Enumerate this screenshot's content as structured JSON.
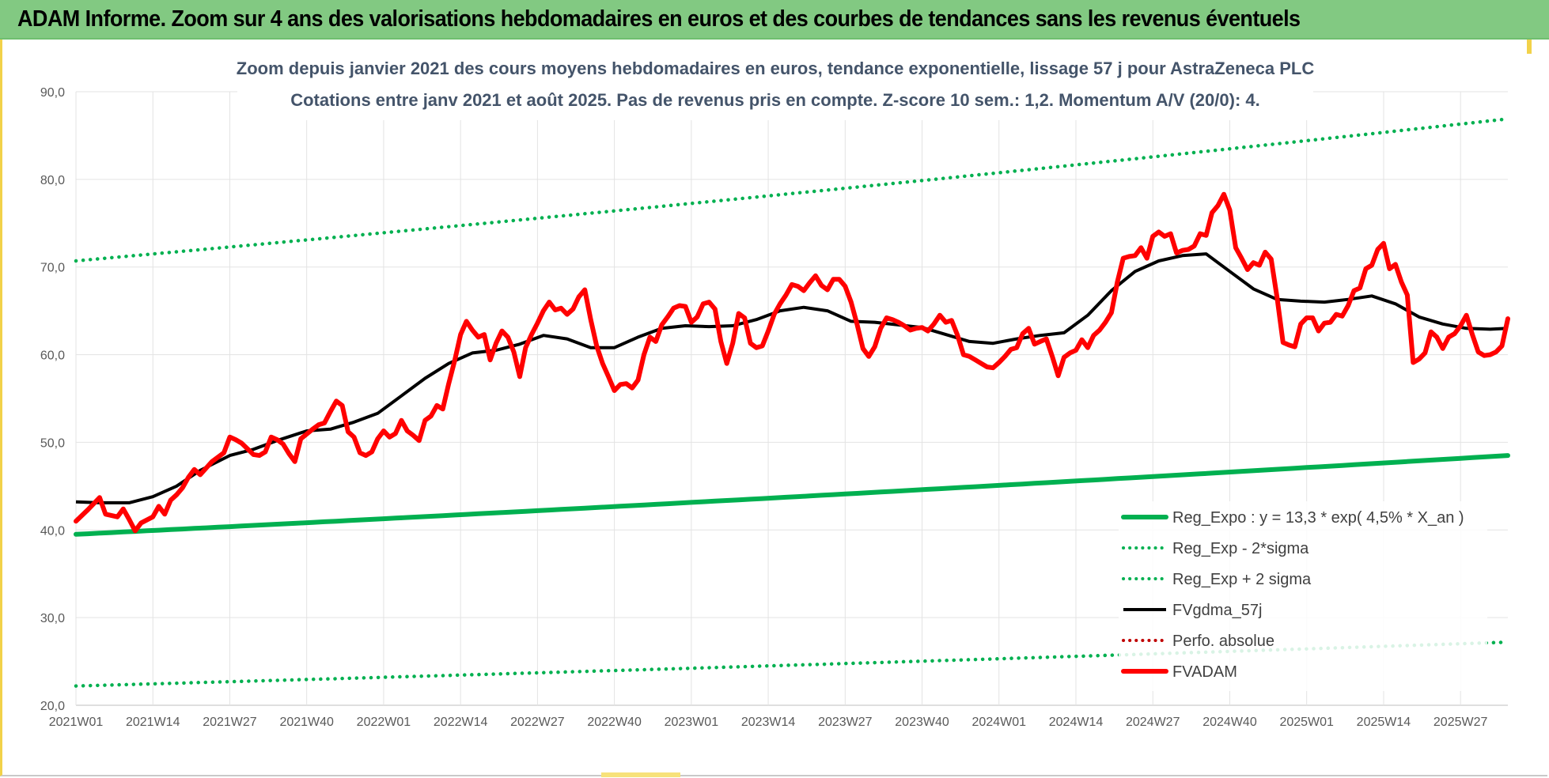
{
  "header": {
    "title": "ADAM Informe. Zoom sur 4 ans des valorisations hebdomadaires en euros et des courbes de tendances sans les revenus éventuels"
  },
  "colors": {
    "header_bg": "#82c982",
    "reg_expo": "#00b050",
    "fvgdma": "#000000",
    "perfo": "#c00000",
    "fvadam": "#ff0000",
    "subtitle": "#44546a"
  },
  "chart_data": {
    "type": "line",
    "title_line1": "Zoom depuis janvier 2021 des cours moyens hebdomadaires en euros, tendance exponentielle, lissage 57 j pour AstraZeneca PLC",
    "title_line2": "Cotations entre janv 2021 et août 2025.  Pas de revenus pris en compte. Z-score 10 sem.: 1,2. Momentum A/V (20/0): 4.",
    "ylim": [
      20,
      90
    ],
    "y_ticks": [
      "20,0",
      "30,0",
      "40,0",
      "50,0",
      "60,0",
      "70,0",
      "80,0",
      "90,0"
    ],
    "x_ticks": [
      "2021W01",
      "2021W14",
      "2021W27",
      "2021W40",
      "2022W01",
      "2022W14",
      "2022W27",
      "2022W40",
      "2023W01",
      "2023W14",
      "2023W27",
      "2023W40",
      "2024W01",
      "2024W14",
      "2024W27",
      "2024W40",
      "2025W01",
      "2025W14",
      "2025W27"
    ],
    "week_range": [
      "2021W01",
      "2025W31"
    ],
    "grid": "vertical",
    "legend_position": "bottom-right",
    "series": [
      {
        "name": "Reg_Expo : y = 13,3 * exp( 4,5% *  X_an )",
        "style": "solid-thick",
        "color": "#00b050",
        "start": 39.5,
        "end": 48.5
      },
      {
        "name": "Reg_Exp - 2*sigma",
        "style": "dotted",
        "color": "#00b050",
        "start": 22.2,
        "end": 27.2
      },
      {
        "name": "Reg_Exp + 2 sigma",
        "style": "dotted",
        "color": "#00b050",
        "start": 70.7,
        "end": 86.9
      },
      {
        "name": "FVgdma_57j",
        "style": "solid",
        "color": "#000000",
        "points": [
          [
            1,
            43.2
          ],
          [
            5,
            43.1
          ],
          [
            10,
            43.1
          ],
          [
            14,
            43.8
          ],
          [
            18,
            45.0
          ],
          [
            22,
            46.8
          ],
          [
            27,
            48.5
          ],
          [
            31,
            49.2
          ],
          [
            35,
            50.2
          ],
          [
            40,
            51.3
          ],
          [
            44,
            51.5
          ],
          [
            48,
            52.3
          ],
          [
            52,
            53.3
          ],
          [
            56,
            55.3
          ],
          [
            60,
            57.3
          ],
          [
            64,
            59.0
          ],
          [
            68,
            60.2
          ],
          [
            72,
            60.5
          ],
          [
            76,
            61.2
          ],
          [
            80,
            62.2
          ],
          [
            84,
            61.8
          ],
          [
            88,
            60.8
          ],
          [
            92,
            60.8
          ],
          [
            96,
            62.0
          ],
          [
            100,
            63.0
          ],
          [
            104,
            63.3
          ],
          [
            108,
            63.2
          ],
          [
            112,
            63.3
          ],
          [
            116,
            64.0
          ],
          [
            120,
            65.0
          ],
          [
            124,
            65.4
          ],
          [
            128,
            65.0
          ],
          [
            132,
            63.8
          ],
          [
            136,
            63.7
          ],
          [
            140,
            63.4
          ],
          [
            144,
            63.1
          ],
          [
            148,
            62.3
          ],
          [
            152,
            61.5
          ],
          [
            156,
            61.3
          ],
          [
            160,
            61.8
          ],
          [
            164,
            62.2
          ],
          [
            168,
            62.5
          ],
          [
            172,
            64.5
          ],
          [
            176,
            67.3
          ],
          [
            180,
            69.5
          ],
          [
            184,
            70.7
          ],
          [
            188,
            71.3
          ],
          [
            192,
            71.5
          ],
          [
            196,
            69.5
          ],
          [
            200,
            67.5
          ],
          [
            204,
            66.3
          ],
          [
            208,
            66.1
          ],
          [
            212,
            66.0
          ],
          [
            216,
            66.3
          ],
          [
            220,
            66.7
          ],
          [
            224,
            65.8
          ],
          [
            228,
            64.3
          ],
          [
            232,
            63.5
          ],
          [
            236,
            63.0
          ],
          [
            240,
            62.9
          ],
          [
            243,
            63.0
          ]
        ]
      },
      {
        "name": "Perfo. absolue",
        "style": "dotted",
        "color": "#c00000",
        "points": []
      },
      {
        "name": "FVADAM",
        "style": "solid-thick",
        "color": "#ff0000",
        "points": [
          [
            1,
            41.0
          ],
          [
            3,
            42.3
          ],
          [
            5,
            43.7
          ],
          [
            6,
            41.8
          ],
          [
            8,
            41.5
          ],
          [
            9,
            42.4
          ],
          [
            10,
            41.2
          ],
          [
            11,
            39.9
          ],
          [
            12,
            40.8
          ],
          [
            14,
            41.5
          ],
          [
            15,
            42.7
          ],
          [
            16,
            41.8
          ],
          [
            17,
            43.4
          ],
          [
            18,
            44.0
          ],
          [
            19,
            44.8
          ],
          [
            20,
            46.0
          ],
          [
            21,
            46.9
          ],
          [
            22,
            46.3
          ],
          [
            24,
            47.8
          ],
          [
            26,
            48.8
          ],
          [
            27,
            50.6
          ],
          [
            28,
            50.3
          ],
          [
            29,
            49.9
          ],
          [
            31,
            48.6
          ],
          [
            32,
            48.5
          ],
          [
            33,
            48.9
          ],
          [
            34,
            50.6
          ],
          [
            35,
            50.3
          ],
          [
            36,
            49.8
          ],
          [
            37,
            48.7
          ],
          [
            38,
            47.8
          ],
          [
            39,
            50.4
          ],
          [
            41,
            51.5
          ],
          [
            42,
            52.0
          ],
          [
            43,
            52.2
          ],
          [
            44,
            53.5
          ],
          [
            45,
            54.7
          ],
          [
            46,
            54.2
          ],
          [
            47,
            51.2
          ],
          [
            48,
            50.6
          ],
          [
            49,
            48.8
          ],
          [
            50,
            48.5
          ],
          [
            51,
            48.9
          ],
          [
            52,
            50.4
          ],
          [
            53,
            51.3
          ],
          [
            54,
            50.6
          ],
          [
            55,
            51.0
          ],
          [
            56,
            52.5
          ],
          [
            57,
            51.3
          ],
          [
            58,
            50.8
          ],
          [
            59,
            50.2
          ],
          [
            60,
            52.5
          ],
          [
            61,
            53.0
          ],
          [
            62,
            54.2
          ],
          [
            63,
            53.8
          ],
          [
            64,
            56.7
          ],
          [
            65,
            59.3
          ],
          [
            66,
            62.3
          ],
          [
            67,
            63.8
          ],
          [
            68,
            62.8
          ],
          [
            69,
            62.0
          ],
          [
            70,
            62.3
          ],
          [
            71,
            59.4
          ],
          [
            72,
            61.3
          ],
          [
            73,
            62.7
          ],
          [
            74,
            62.0
          ],
          [
            75,
            60.3
          ],
          [
            76,
            57.5
          ],
          [
            77,
            60.8
          ],
          [
            78,
            62.3
          ],
          [
            79,
            63.6
          ],
          [
            80,
            65.0
          ],
          [
            81,
            66.0
          ],
          [
            82,
            65.1
          ],
          [
            83,
            65.3
          ],
          [
            84,
            64.6
          ],
          [
            85,
            65.2
          ],
          [
            86,
            66.6
          ],
          [
            87,
            67.4
          ],
          [
            88,
            64.0
          ],
          [
            89,
            61.0
          ],
          [
            90,
            59.0
          ],
          [
            91,
            57.5
          ],
          [
            92,
            55.9
          ],
          [
            93,
            56.6
          ],
          [
            94,
            56.7
          ],
          [
            95,
            56.2
          ],
          [
            96,
            57.1
          ],
          [
            97,
            60.0
          ],
          [
            98,
            62.0
          ],
          [
            99,
            61.5
          ],
          [
            100,
            63.4
          ],
          [
            101,
            64.3
          ],
          [
            102,
            65.3
          ],
          [
            103,
            65.6
          ],
          [
            104,
            65.5
          ],
          [
            105,
            63.7
          ],
          [
            106,
            64.3
          ],
          [
            107,
            65.8
          ],
          [
            108,
            66.0
          ],
          [
            109,
            65.2
          ],
          [
            110,
            61.5
          ],
          [
            111,
            59.0
          ],
          [
            112,
            61.3
          ],
          [
            113,
            64.7
          ],
          [
            114,
            64.2
          ],
          [
            115,
            61.3
          ],
          [
            116,
            60.8
          ],
          [
            117,
            61.0
          ],
          [
            118,
            62.7
          ],
          [
            119,
            64.6
          ],
          [
            120,
            65.8
          ],
          [
            121,
            66.8
          ],
          [
            122,
            68.0
          ],
          [
            123,
            67.8
          ],
          [
            124,
            67.3
          ],
          [
            125,
            68.2
          ],
          [
            126,
            69.0
          ],
          [
            127,
            67.9
          ],
          [
            128,
            67.4
          ],
          [
            129,
            68.6
          ],
          [
            130,
            68.6
          ],
          [
            131,
            67.8
          ],
          [
            132,
            66.0
          ],
          [
            133,
            63.5
          ],
          [
            134,
            60.7
          ],
          [
            135,
            59.8
          ],
          [
            136,
            60.9
          ],
          [
            137,
            63.0
          ],
          [
            138,
            64.2
          ],
          [
            139,
            64.0
          ],
          [
            140,
            63.7
          ],
          [
            141,
            63.3
          ],
          [
            142,
            62.8
          ],
          [
            143,
            63.0
          ],
          [
            144,
            63.1
          ],
          [
            145,
            62.7
          ],
          [
            146,
            63.5
          ],
          [
            147,
            64.5
          ],
          [
            148,
            63.7
          ],
          [
            149,
            63.9
          ],
          [
            150,
            62.2
          ],
          [
            151,
            60.0
          ],
          [
            152,
            59.8
          ],
          [
            153,
            59.4
          ],
          [
            154,
            59.0
          ],
          [
            155,
            58.6
          ],
          [
            156,
            58.5
          ],
          [
            157,
            59.1
          ],
          [
            158,
            59.8
          ],
          [
            159,
            60.6
          ],
          [
            160,
            60.8
          ],
          [
            161,
            62.4
          ],
          [
            162,
            63.0
          ],
          [
            163,
            61.2
          ],
          [
            164,
            61.5
          ],
          [
            165,
            61.8
          ],
          [
            166,
            59.8
          ],
          [
            167,
            57.6
          ],
          [
            168,
            59.7
          ],
          [
            169,
            60.2
          ],
          [
            170,
            60.5
          ],
          [
            171,
            61.7
          ],
          [
            172,
            60.8
          ],
          [
            173,
            62.2
          ],
          [
            174,
            62.8
          ],
          [
            175,
            63.7
          ],
          [
            176,
            64.8
          ],
          [
            177,
            68.3
          ],
          [
            178,
            71.0
          ],
          [
            179,
            71.2
          ],
          [
            180,
            71.3
          ],
          [
            181,
            72.2
          ],
          [
            182,
            71.0
          ],
          [
            183,
            73.5
          ],
          [
            184,
            74.0
          ],
          [
            185,
            73.5
          ],
          [
            186,
            73.8
          ],
          [
            187,
            71.6
          ],
          [
            188,
            71.9
          ],
          [
            189,
            72.0
          ],
          [
            190,
            72.4
          ],
          [
            191,
            73.8
          ],
          [
            192,
            73.6
          ],
          [
            193,
            76.2
          ],
          [
            194,
            77.0
          ],
          [
            195,
            78.3
          ],
          [
            196,
            76.5
          ],
          [
            197,
            72.2
          ],
          [
            198,
            71.0
          ],
          [
            199,
            69.7
          ],
          [
            200,
            70.5
          ],
          [
            201,
            70.2
          ],
          [
            202,
            71.7
          ],
          [
            203,
            70.9
          ],
          [
            204,
            66.5
          ],
          [
            205,
            61.4
          ],
          [
            206,
            61.1
          ],
          [
            207,
            60.9
          ],
          [
            208,
            63.5
          ],
          [
            209,
            64.2
          ],
          [
            210,
            64.2
          ],
          [
            211,
            62.7
          ],
          [
            212,
            63.6
          ],
          [
            213,
            63.7
          ],
          [
            214,
            64.6
          ],
          [
            215,
            64.4
          ],
          [
            216,
            65.6
          ],
          [
            217,
            67.3
          ],
          [
            218,
            67.6
          ],
          [
            219,
            69.8
          ],
          [
            220,
            70.2
          ],
          [
            221,
            72.0
          ],
          [
            222,
            72.7
          ],
          [
            223,
            69.8
          ],
          [
            224,
            70.3
          ],
          [
            225,
            68.3
          ],
          [
            226,
            66.8
          ],
          [
            227,
            59.1
          ],
          [
            228,
            59.5
          ],
          [
            229,
            60.2
          ],
          [
            230,
            62.6
          ],
          [
            231,
            62.0
          ],
          [
            232,
            60.7
          ],
          [
            233,
            62.0
          ],
          [
            234,
            62.4
          ],
          [
            235,
            63.3
          ],
          [
            236,
            64.5
          ],
          [
            237,
            62.3
          ],
          [
            238,
            60.3
          ],
          [
            239,
            59.9
          ],
          [
            240,
            60.0
          ],
          [
            241,
            60.3
          ],
          [
            242,
            61.0
          ],
          [
            243,
            64.1
          ]
        ]
      }
    ]
  }
}
